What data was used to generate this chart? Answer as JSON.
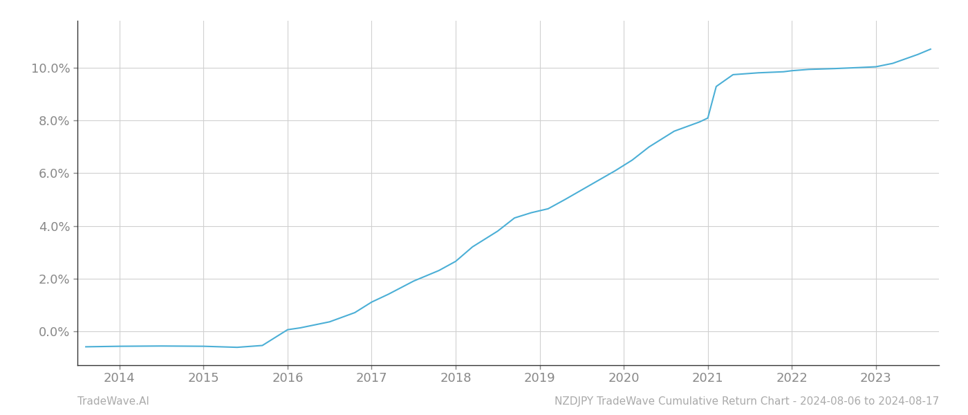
{
  "x_values": [
    2013.6,
    2014.0,
    2014.5,
    2015.0,
    2015.4,
    2015.7,
    2016.0,
    2016.15,
    2016.5,
    2016.8,
    2017.0,
    2017.2,
    2017.5,
    2017.8,
    2018.0,
    2018.2,
    2018.5,
    2018.7,
    2018.9,
    2019.1,
    2019.3,
    2019.6,
    2019.9,
    2020.1,
    2020.3,
    2020.6,
    2020.9,
    2021.0,
    2021.1,
    2021.3,
    2021.6,
    2021.9,
    2022.0,
    2022.2,
    2022.5,
    2022.8,
    2023.0,
    2023.2,
    2023.5,
    2023.65
  ],
  "y_values": [
    -0.6,
    -0.58,
    -0.57,
    -0.58,
    -0.62,
    -0.55,
    0.05,
    0.12,
    0.35,
    0.7,
    1.1,
    1.4,
    1.9,
    2.3,
    2.65,
    3.2,
    3.8,
    4.3,
    4.5,
    4.65,
    5.0,
    5.55,
    6.1,
    6.5,
    7.0,
    7.6,
    7.95,
    8.1,
    9.3,
    9.75,
    9.82,
    9.86,
    9.9,
    9.95,
    9.98,
    10.02,
    10.05,
    10.18,
    10.52,
    10.72
  ],
  "line_color": "#4bafd6",
  "line_width": 1.5,
  "background_color": "#ffffff",
  "grid_color": "#d0d0d0",
  "spine_color": "#333333",
  "tick_label_color": "#888888",
  "yticks": [
    0.0,
    2.0,
    4.0,
    6.0,
    8.0,
    10.0
  ],
  "ytick_labels": [
    "0.0%",
    "2.0%",
    "4.0%",
    "6.0%",
    "8.0%",
    "10.0%"
  ],
  "xticks": [
    2014,
    2015,
    2016,
    2017,
    2018,
    2019,
    2020,
    2021,
    2022,
    2023
  ],
  "xlim": [
    2013.5,
    2023.75
  ],
  "ylim": [
    -1.3,
    11.8
  ],
  "footer_left": "TradeWave.AI",
  "footer_right": "NZDJPY TradeWave Cumulative Return Chart - 2024-08-06 to 2024-08-17",
  "footer_color": "#aaaaaa",
  "footer_fontsize": 11,
  "tick_fontsize": 13
}
